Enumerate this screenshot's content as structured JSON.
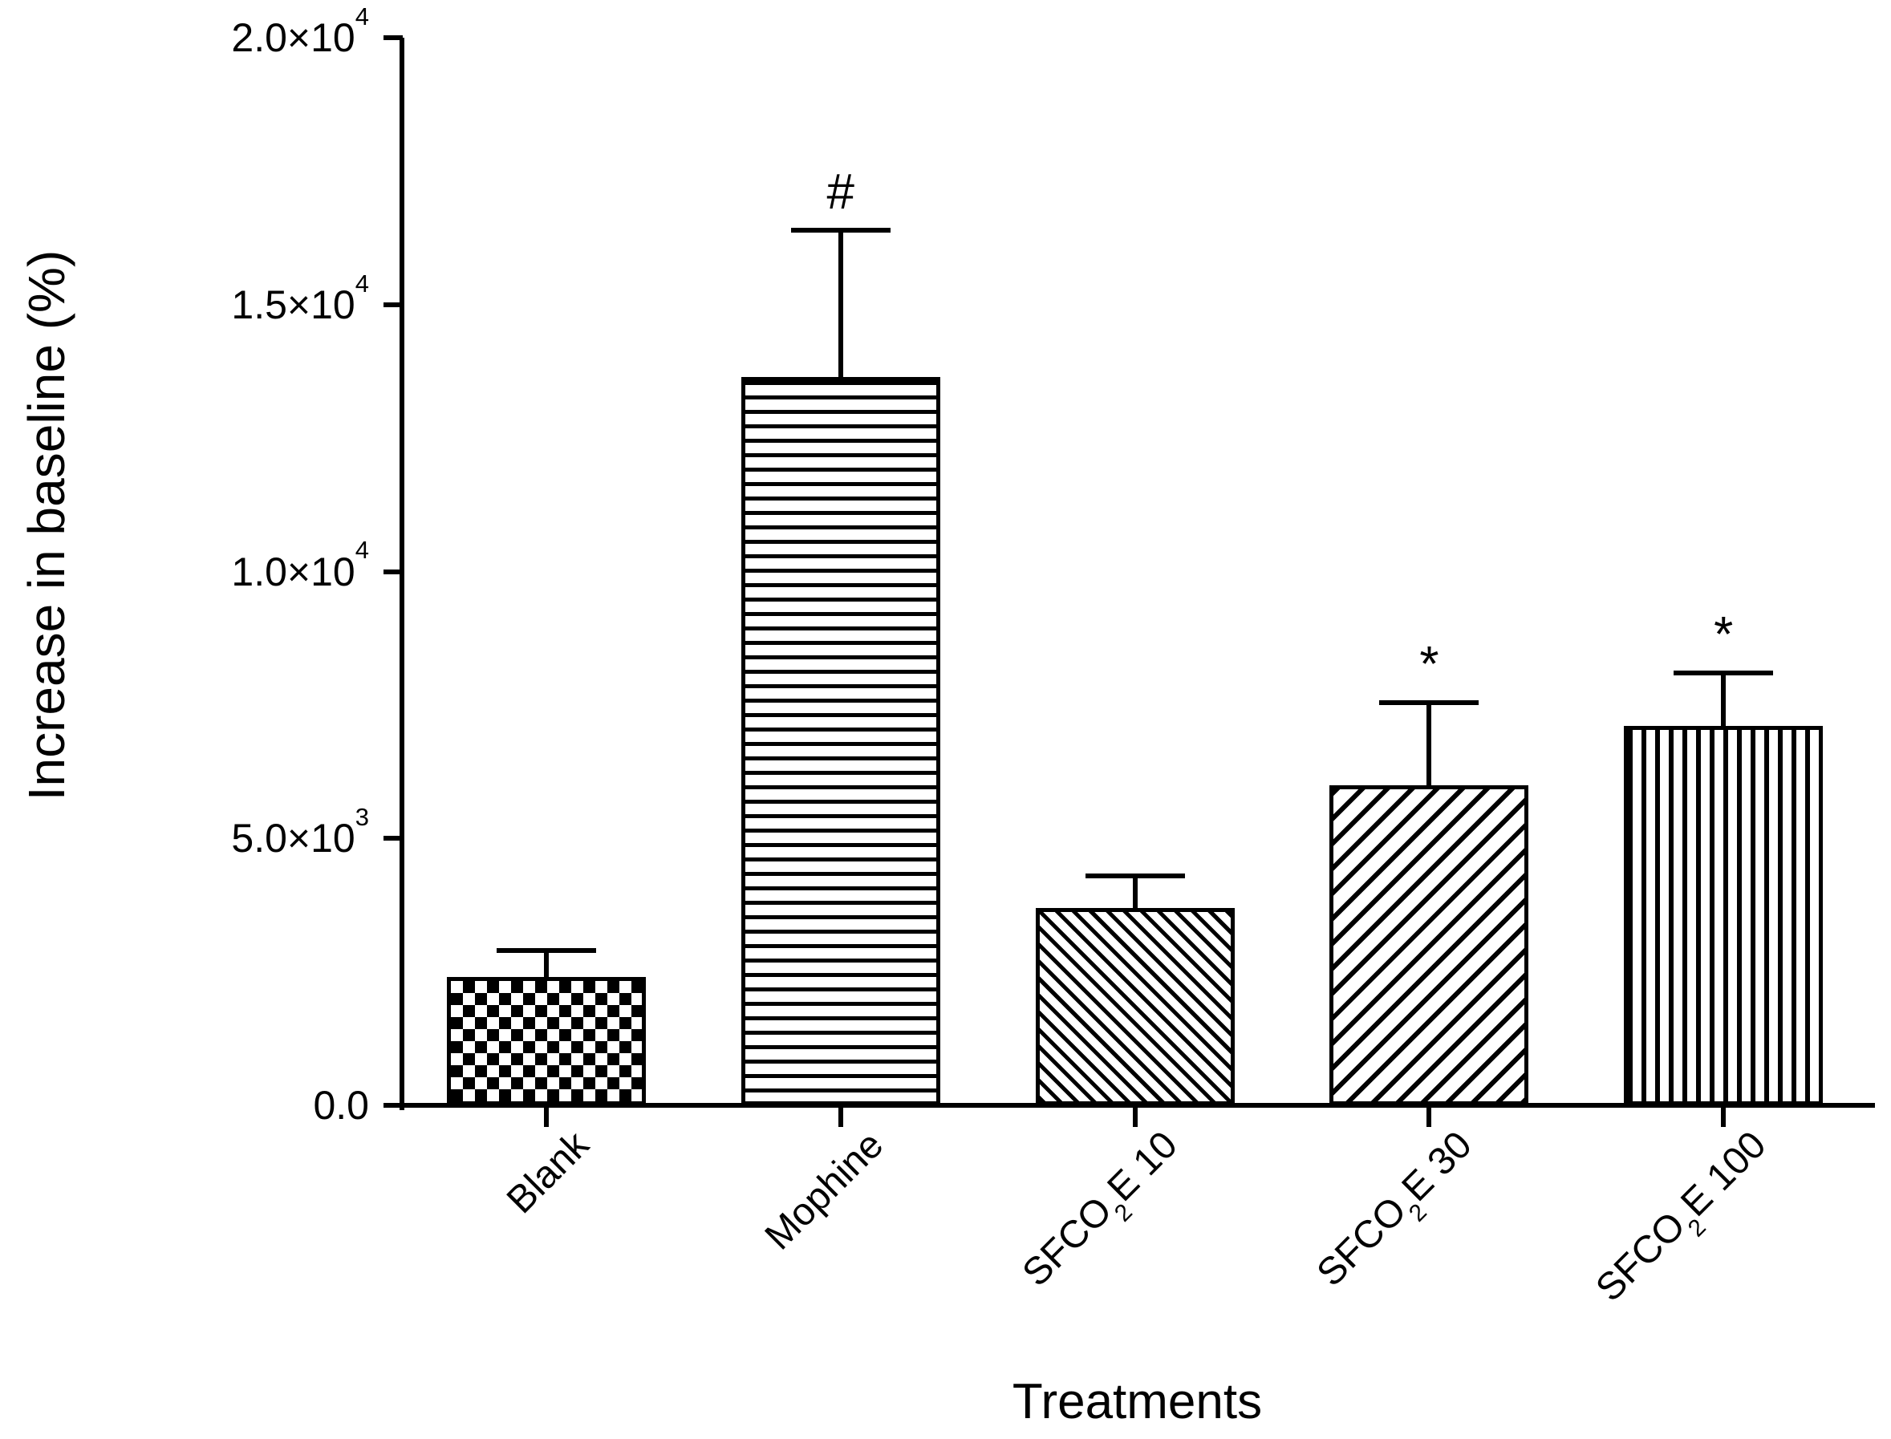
{
  "chart_data": {
    "type": "bar",
    "title": "",
    "xlabel": "Treatments",
    "ylabel": "Increase in baseline (%)",
    "ylim": [
      0,
      20000
    ],
    "grid": false,
    "legend": false,
    "y_ticks": [
      {
        "value": 0,
        "label": "0.0",
        "mantissa": "0.0",
        "exp": ""
      },
      {
        "value": 5000,
        "label": "5.0×10³",
        "mantissa": "5.0×10",
        "exp": "3"
      },
      {
        "value": 10000,
        "label": "1.0×10⁴",
        "mantissa": "1.0×10",
        "exp": "4"
      },
      {
        "value": 15000,
        "label": "1.5×10⁴",
        "mantissa": "1.5×10",
        "exp": "4"
      },
      {
        "value": 20000,
        "label": "2.0×10⁴",
        "mantissa": "2.0×10",
        "exp": "4"
      }
    ],
    "categories": [
      "Blank",
      "Mophine",
      "SFCO₂E 10",
      "SFCO₂E 30",
      "SFCO₂E 100"
    ],
    "bars": [
      {
        "id": "blank",
        "label_pre": "Blank",
        "label_sub": "",
        "label_post": "",
        "value": 2400,
        "error_top": 2900,
        "pattern": "checkerboard",
        "annotation": ""
      },
      {
        "id": "mophine",
        "label_pre": "Mophine",
        "label_sub": "",
        "label_post": "",
        "value": 13650,
        "error_top": 16400,
        "pattern": "horizontal-lines",
        "annotation": "#"
      },
      {
        "id": "sfco2e-10",
        "label_pre": "SFCO",
        "label_sub": "2",
        "label_post": "E 10",
        "value": 3700,
        "error_top": 4300,
        "pattern": "diagonal-down-lines",
        "annotation": ""
      },
      {
        "id": "sfco2e-30",
        "label_pre": "SFCO",
        "label_sub": "2",
        "label_post": "E 30",
        "value": 6000,
        "error_top": 7550,
        "pattern": "diagonal-up-lines",
        "annotation": "*"
      },
      {
        "id": "sfco2e-100",
        "label_pre": "SFCO",
        "label_sub": "2",
        "label_post": "E 100",
        "value": 7100,
        "error_top": 8100,
        "pattern": "vertical-lines",
        "annotation": "*"
      }
    ]
  }
}
